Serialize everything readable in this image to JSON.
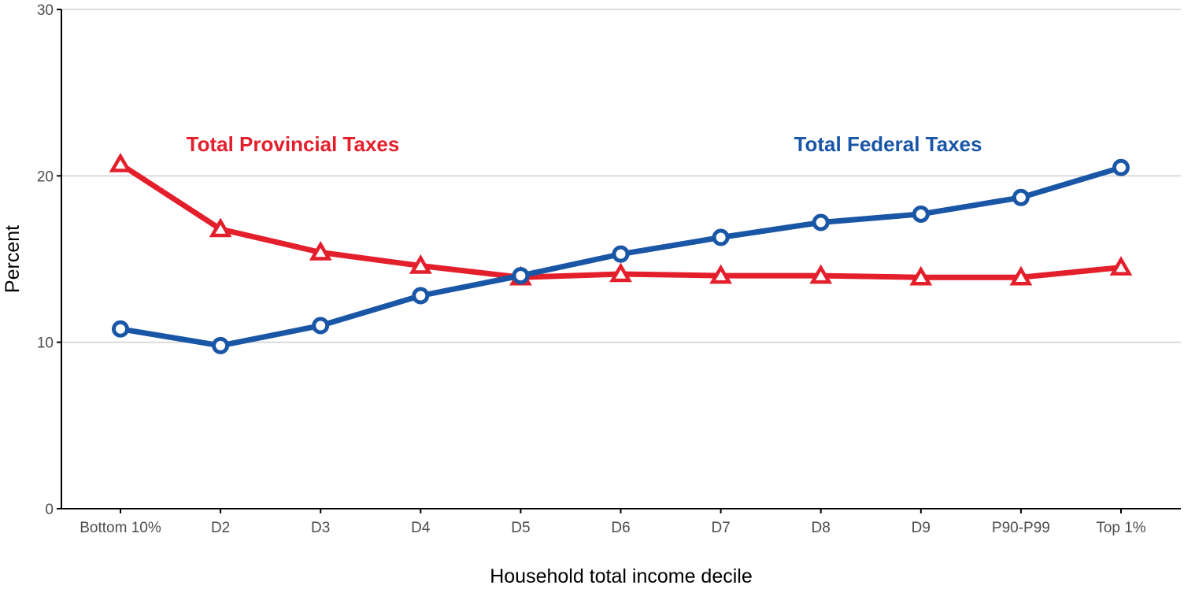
{
  "chart_data": {
    "type": "line",
    "categories": [
      "Bottom 10%",
      "D2",
      "D3",
      "D4",
      "D5",
      "D6",
      "D7",
      "D8",
      "D9",
      "P90-P99",
      "Top 1%"
    ],
    "series": [
      {
        "name": "Total Provincial Taxes",
        "color": "#e41f2c",
        "marker": "triangle",
        "values": [
          20.7,
          16.8,
          15.4,
          14.6,
          13.9,
          14.1,
          14.0,
          14.0,
          13.9,
          13.9,
          14.5
        ]
      },
      {
        "name": "Total Federal Taxes",
        "color": "#1a56a6",
        "marker": "circle",
        "values": [
          10.8,
          9.8,
          11.0,
          12.8,
          14.0,
          15.3,
          16.3,
          17.2,
          17.7,
          18.7,
          20.5
        ]
      }
    ],
    "xlabel": "Household total income decile",
    "ylabel": "Percent",
    "ylim": [
      0,
      30
    ],
    "yticks": [
      0,
      10,
      20,
      30
    ],
    "grid": "horizontal"
  }
}
